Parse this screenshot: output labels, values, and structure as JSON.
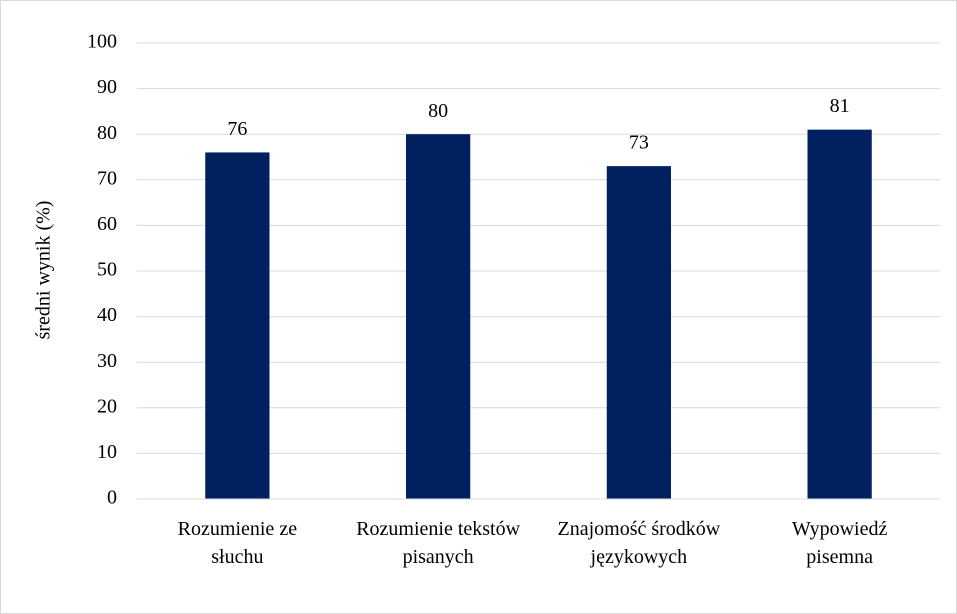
{
  "chart_data": {
    "type": "bar",
    "y_label": "średni wynik (%)",
    "categories": [
      "Rozumienie ze słuchu",
      "Rozumienie tekstów pisanych",
      "Znajomość środków językowych",
      "Wypowiedź pisemna"
    ],
    "values": [
      76,
      80,
      73,
      81
    ],
    "color": "#002060",
    "ylim": [
      0,
      100
    ],
    "yticks": [
      0,
      10,
      20,
      30,
      40,
      50,
      60,
      70,
      80,
      90,
      100
    ],
    "grid": true
  }
}
